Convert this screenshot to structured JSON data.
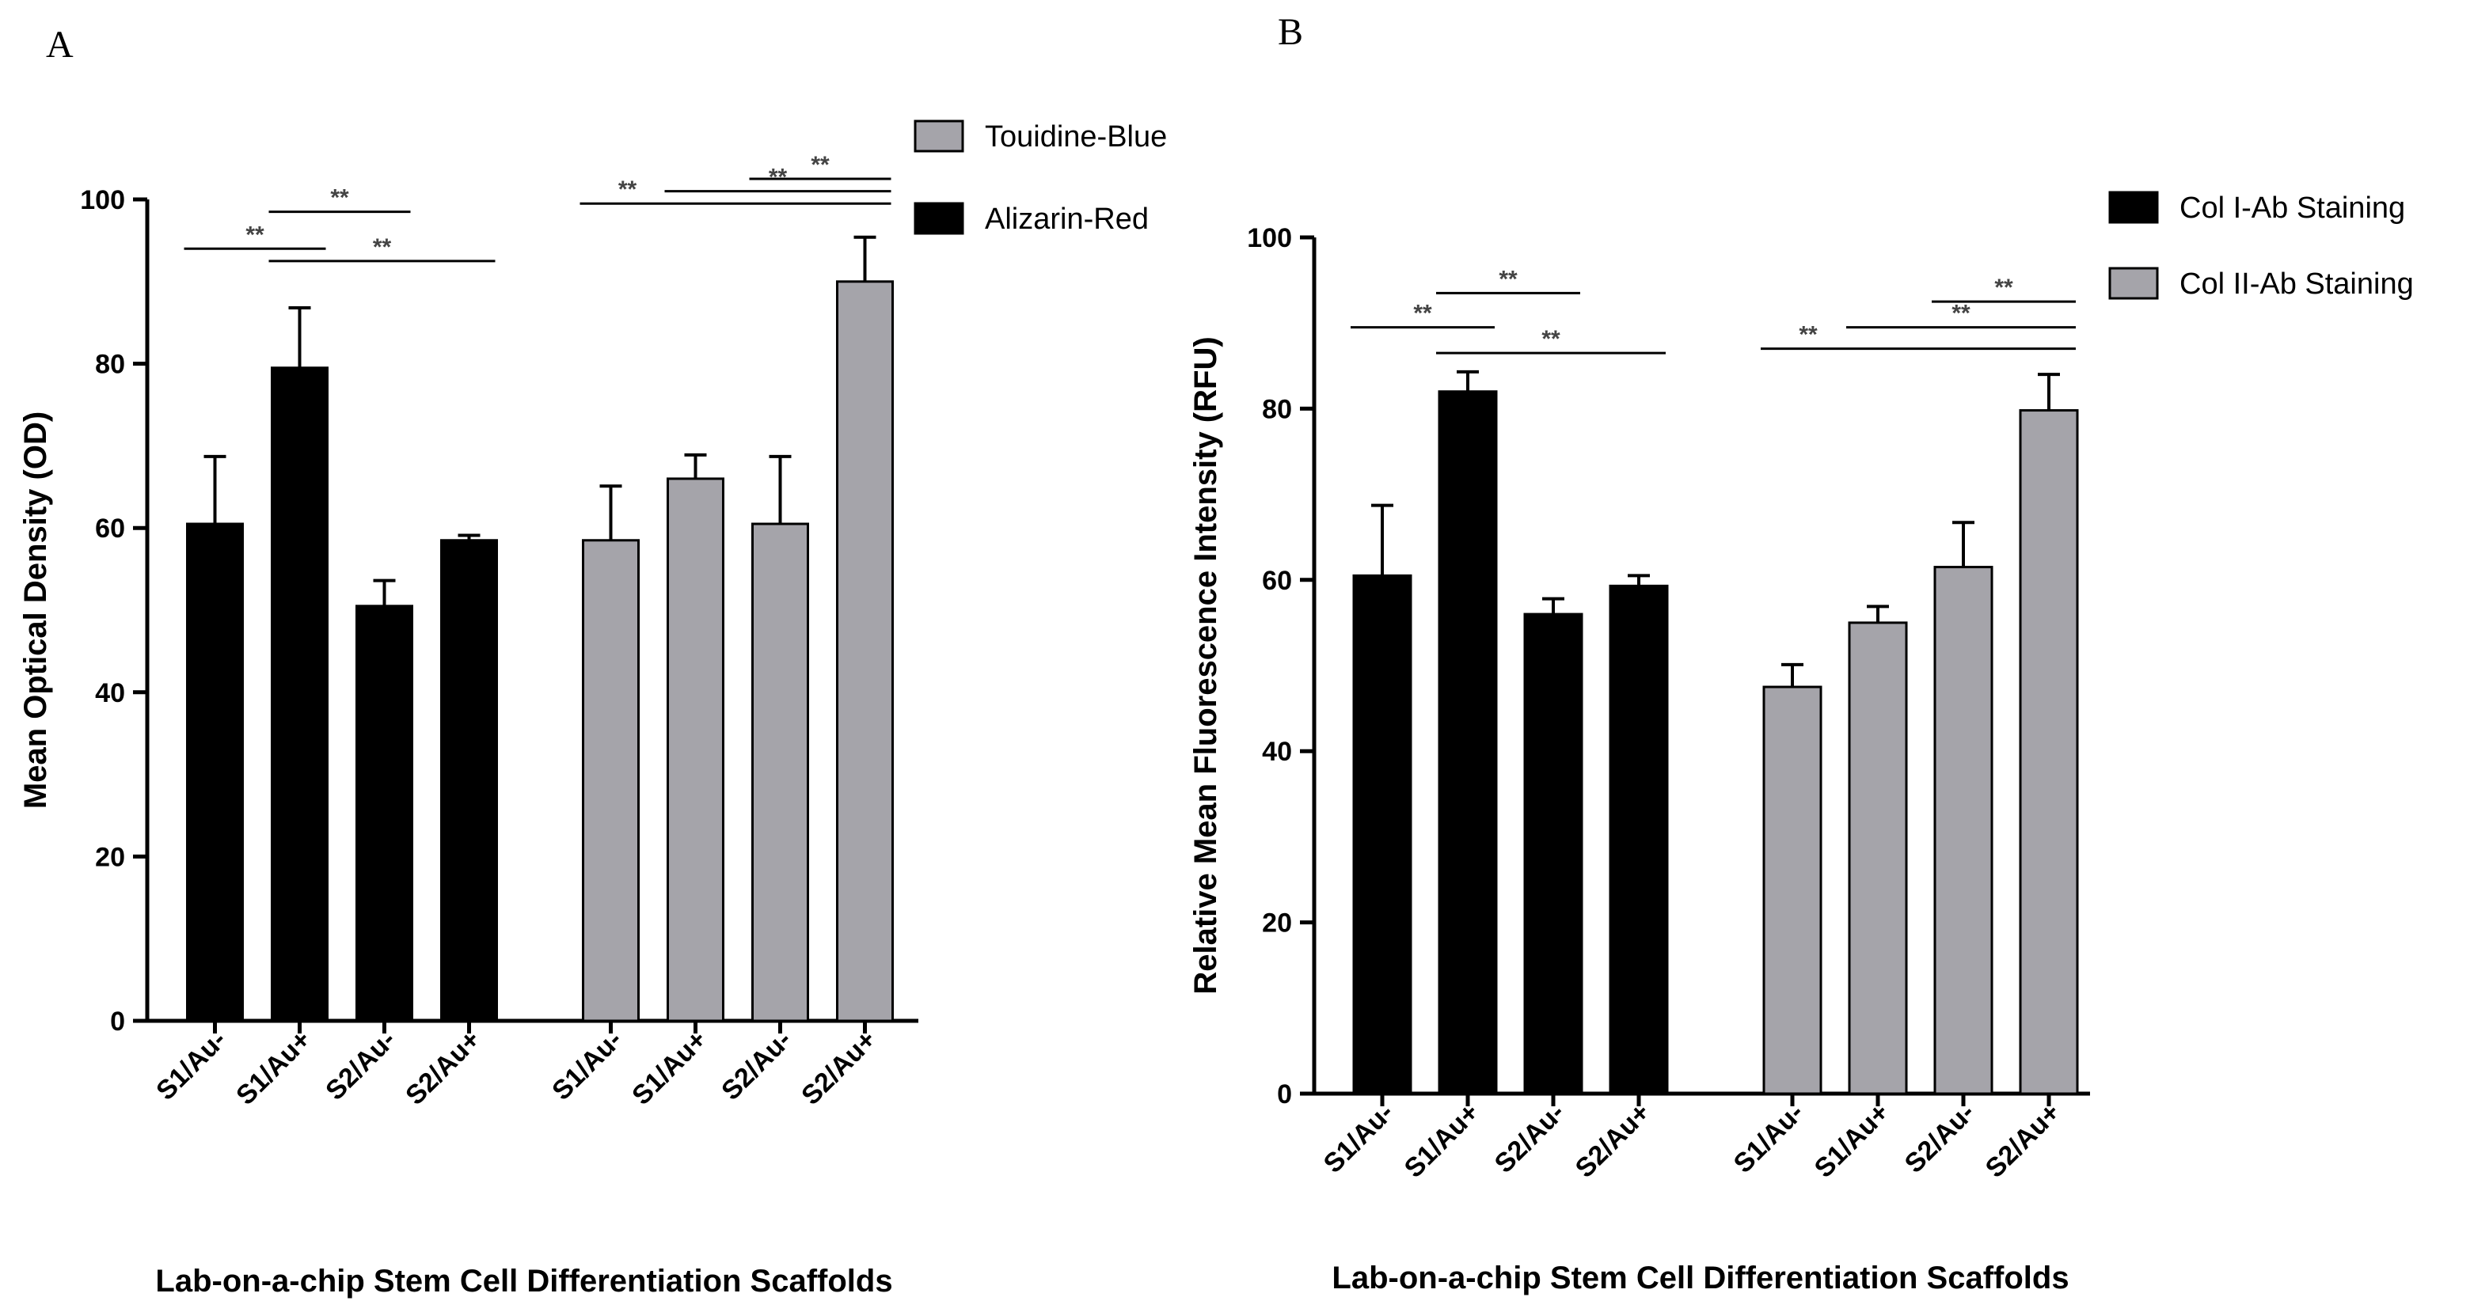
{
  "panels": [
    {
      "letter": "A"
    },
    {
      "letter": "B"
    }
  ],
  "chart_data": [
    {
      "type": "bar",
      "panel": "A",
      "xlabel": "Lab-on-a-chip Stem Cell Differentiation Scaffolds",
      "ylabel": "Mean Optical Density (OD)",
      "ylim": [
        0,
        100
      ],
      "yticks": [
        "0",
        "20",
        "40",
        "60",
        "80",
        "100"
      ],
      "legend_position": "top-right",
      "series": [
        {
          "name": "Alizarin-Red",
          "color": "#000000",
          "categories": [
            "S1/Au-",
            "S1/Au+",
            "S2/Au-",
            "S2/Au+"
          ],
          "values": [
            60.5,
            79.5,
            50.5,
            58.5
          ],
          "errors": [
            8.2,
            7.3,
            3.1,
            0.6
          ]
        },
        {
          "name": "Touidine-Blue",
          "color": "#a5a4aa",
          "categories": [
            "S1/Au-",
            "S1/Au+",
            "S2/Au-",
            "S2/Au+"
          ],
          "values": [
            58.5,
            66.0,
            60.5,
            90.0
          ],
          "errors": [
            6.6,
            2.9,
            8.2,
            5.4
          ]
        }
      ],
      "legend_order": [
        1,
        0
      ],
      "significance": [
        {
          "series_from": 0,
          "from": 0,
          "series_to": 0,
          "to": 1,
          "y": 94.0,
          "label": "**"
        },
        {
          "series_from": 0,
          "from": 1,
          "series_to": 0,
          "to": 2,
          "y": 98.5,
          "label": "**"
        },
        {
          "series_from": 0,
          "from": 1,
          "series_to": 0,
          "to": 3,
          "y": 92.5,
          "label": "**"
        },
        {
          "series_from": 1,
          "from": 0,
          "series_to": 1,
          "to": 3,
          "y": 99.5,
          "label": "**"
        },
        {
          "series_from": 1,
          "from": 1,
          "series_to": 1,
          "to": 3,
          "y": 101.0,
          "label": "**"
        },
        {
          "series_from": 1,
          "from": 2,
          "series_to": 1,
          "to": 3,
          "y": 102.5,
          "label": "**"
        }
      ]
    },
    {
      "type": "bar",
      "panel": "B",
      "xlabel": "Lab-on-a-chip Stem Cell Differentiation Scaffolds",
      "ylabel": "Relative Mean Fluorescence Intensity (RFU)",
      "ylim": [
        0,
        100
      ],
      "yticks": [
        "0",
        "20",
        "40",
        "60",
        "80",
        "100"
      ],
      "legend_position": "top-right",
      "series": [
        {
          "name": "Col I-Ab Staining",
          "color": "#000000",
          "categories": [
            "S1/Au-",
            "S1/Au+",
            "S2/Au-",
            "S2/Au+"
          ],
          "values": [
            60.5,
            82.0,
            56.0,
            59.3
          ],
          "errors": [
            8.2,
            2.3,
            1.8,
            1.2
          ]
        },
        {
          "name": "Col II-Ab Staining",
          "color": "#a5a4aa",
          "categories": [
            "S1/Au-",
            "S1/Au+",
            "S2/Au-",
            "S2/Au+"
          ],
          "values": [
            47.5,
            55.0,
            61.5,
            79.8
          ],
          "errors": [
            2.6,
            1.9,
            5.2,
            4.2
          ]
        }
      ],
      "legend_order": [
        0,
        1
      ],
      "significance": [
        {
          "series_from": 0,
          "from": 0,
          "series_to": 0,
          "to": 1,
          "y": 89.5,
          "label": "**"
        },
        {
          "series_from": 0,
          "from": 1,
          "series_to": 0,
          "to": 2,
          "y": 93.5,
          "label": "**"
        },
        {
          "series_from": 0,
          "from": 1,
          "series_to": 0,
          "to": 3,
          "y": 86.5,
          "label": "**"
        },
        {
          "series_from": 1,
          "from": 0,
          "series_to": 1,
          "to": 3,
          "y": 87.0,
          "label": "**"
        },
        {
          "series_from": 1,
          "from": 1,
          "series_to": 1,
          "to": 3,
          "y": 89.5,
          "label": "**"
        },
        {
          "series_from": 1,
          "from": 2,
          "series_to": 1,
          "to": 3,
          "y": 92.5,
          "label": "**"
        }
      ]
    }
  ]
}
